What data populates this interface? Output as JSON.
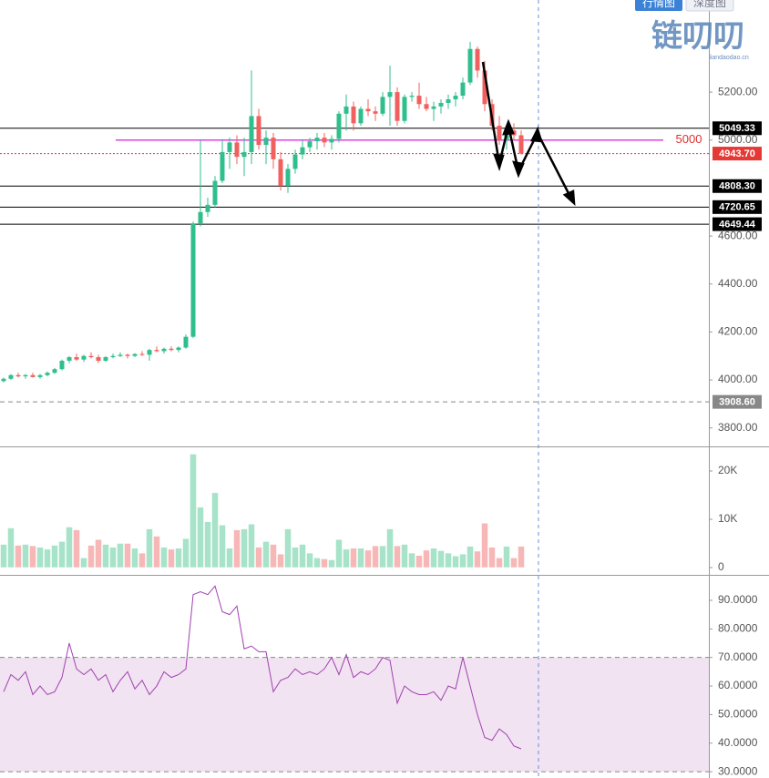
{
  "tabs": [
    "行情图",
    "深度图"
  ],
  "watermark": {
    "title": "链叨叨",
    "url": "liandaodao.cn"
  },
  "chart_data": [
    {
      "type": "candlestick",
      "up_color": "#2fbf8c",
      "down_color": "#f0605e",
      "ylim": [
        3723,
        5584
      ],
      "yticks": [
        {
          "value": 5200,
          "label": "5200.00"
        },
        {
          "value": 5000,
          "label": "5000.00"
        },
        {
          "value": 4600,
          "label": "4600.00"
        },
        {
          "value": 4400,
          "label": "4400.00"
        },
        {
          "value": 4200,
          "label": "4200.00"
        },
        {
          "value": 4000,
          "label": "4000.00"
        },
        {
          "value": 3800,
          "label": "3800.00"
        }
      ],
      "levels": [
        {
          "value": 5049.33,
          "label": "5049.33",
          "color": "#000000"
        },
        {
          "value": 5000,
          "label": "5000",
          "color": "#e040e0",
          "text_color": "#e03030"
        },
        {
          "value": 4943.7,
          "label": "4943.70",
          "color": "#e53935",
          "dash": true
        },
        {
          "value": 4808.3,
          "label": "4808.30",
          "color": "#000000"
        },
        {
          "value": 4720.65,
          "label": "4720.65",
          "color": "#000000"
        },
        {
          "value": 4649.44,
          "label": "4649.44",
          "color": "#000000"
        },
        {
          "value": 3908.6,
          "label": "3908.60",
          "color": "#888888",
          "dash": true
        }
      ],
      "ohlc": [
        [
          3995,
          4010,
          3990,
          4005
        ],
        [
          4005,
          4025,
          4000,
          4020
        ],
        [
          4020,
          4030,
          4010,
          4015
        ],
        [
          4015,
          4025,
          4005,
          4020
        ],
        [
          4020,
          4030,
          4010,
          4012
        ],
        [
          4012,
          4025,
          4005,
          4020
        ],
        [
          4020,
          4035,
          4015,
          4030
        ],
        [
          4030,
          4050,
          4025,
          4045
        ],
        [
          4045,
          4085,
          4040,
          4080
        ],
        [
          4080,
          4100,
          4070,
          4095
        ],
        [
          4095,
          4110,
          4080,
          4085
        ],
        [
          4085,
          4105,
          4075,
          4100
        ],
        [
          4100,
          4115,
          4090,
          4095
        ],
        [
          4095,
          4105,
          4070,
          4080
        ],
        [
          4080,
          4100,
          4075,
          4095
        ],
        [
          4095,
          4110,
          4090,
          4100
        ],
        [
          4100,
          4115,
          4095,
          4105
        ],
        [
          4105,
          4110,
          4090,
          4100
        ],
        [
          4100,
          4112,
          4095,
          4108
        ],
        [
          4108,
          4120,
          4100,
          4105
        ],
        [
          4105,
          4130,
          4080,
          4125
        ],
        [
          4125,
          4140,
          4115,
          4120
        ],
        [
          4120,
          4135,
          4110,
          4130
        ],
        [
          4130,
          4140,
          4120,
          4125
        ],
        [
          4125,
          4140,
          4115,
          4135
        ],
        [
          4135,
          4190,
          4130,
          4180
        ],
        [
          4180,
          4660,
          4175,
          4650
        ],
        [
          4650,
          5000,
          4640,
          4700
        ],
        [
          4700,
          4760,
          4680,
          4730
        ],
        [
          4730,
          4850,
          4720,
          4830
        ],
        [
          4830,
          5000,
          4820,
          4950
        ],
        [
          4950,
          5010,
          4880,
          4990
        ],
        [
          4990,
          5020,
          4900,
          4930
        ],
        [
          4930,
          5010,
          4850,
          4950
        ],
        [
          4950,
          5290,
          4900,
          5100
        ],
        [
          5100,
          5130,
          4960,
          4980
        ],
        [
          4980,
          5040,
          4900,
          5010
        ],
        [
          5010,
          5030,
          4880,
          4920
        ],
        [
          4920,
          4950,
          4790,
          4810
        ],
        [
          4810,
          4900,
          4780,
          4880
        ],
        [
          4880,
          4960,
          4860,
          4940
        ],
        [
          4940,
          5000,
          4920,
          4970
        ],
        [
          4970,
          5010,
          4950,
          4995
        ],
        [
          4995,
          5030,
          4960,
          5010
        ],
        [
          5010,
          5030,
          4970,
          4990
        ],
        [
          4990,
          5020,
          4960,
          5005
        ],
        [
          5005,
          5120,
          4990,
          5110
        ],
        [
          5110,
          5190,
          5040,
          5140
        ],
        [
          5140,
          5160,
          5040,
          5070
        ],
        [
          5070,
          5140,
          5060,
          5130
        ],
        [
          5130,
          5170,
          5100,
          5120
        ],
        [
          5120,
          5140,
          5080,
          5110
        ],
        [
          5110,
          5200,
          5100,
          5180
        ],
        [
          5180,
          5310,
          5060,
          5200
        ],
        [
          5200,
          5220,
          5060,
          5080
        ],
        [
          5080,
          5190,
          5070,
          5180
        ],
        [
          5180,
          5200,
          5160,
          5185
        ],
        [
          5185,
          5240,
          5130,
          5150
        ],
        [
          5150,
          5180,
          5120,
          5130
        ],
        [
          5130,
          5160,
          5080,
          5140
        ],
        [
          5140,
          5170,
          5110,
          5155
        ],
        [
          5155,
          5190,
          5130,
          5170
        ],
        [
          5170,
          5200,
          5140,
          5185
        ],
        [
          5185,
          5260,
          5170,
          5240
        ],
        [
          5240,
          5410,
          5230,
          5380
        ],
        [
          5380,
          5390,
          5260,
          5290
        ],
        [
          5290,
          5330,
          5120,
          5150
        ],
        [
          5150,
          5170,
          5040,
          5060
        ],
        [
          5060,
          5100,
          4980,
          5000
        ],
        [
          5000,
          5060,
          4960,
          5040
        ],
        [
          5040,
          5070,
          5000,
          5020
        ],
        [
          5020,
          5040,
          4940,
          4944
        ]
      ]
    },
    {
      "type": "bar",
      "up_color": "#a6e3c8",
      "down_color": "#f7b7b7",
      "ylim": [
        -1509,
        24906
      ],
      "yticks": [
        {
          "value": 20000,
          "label": "20K"
        },
        {
          "value": 10000,
          "label": "10K"
        },
        0
      ],
      "values": [
        4800,
        8200,
        4600,
        4800,
        4500,
        4200,
        3800,
        4600,
        5400,
        8400,
        7800,
        2000,
        4600,
        5800,
        4800,
        4200,
        5000,
        5000,
        4000,
        3000,
        8000,
        6500,
        4200,
        3800,
        4000,
        6000,
        23500,
        12500,
        9500,
        15500,
        8800,
        4000,
        7800,
        8000,
        9000,
        4200,
        5400,
        4800,
        2800,
        8000,
        4200,
        4800,
        3000,
        2000,
        1800,
        1600,
        5800,
        3800,
        4000,
        4000,
        3600,
        4500,
        4500,
        8000,
        4500,
        4800,
        3000,
        2500,
        3600,
        4000,
        3500,
        3000,
        2400,
        2800,
        4400,
        3400,
        9200,
        4200,
        2000,
        4400,
        2000,
        4400
      ]
    },
    {
      "type": "line",
      "color": "#a040b0",
      "band_color": "#f1e3f1",
      "ylim": [
        27.8,
        98.6
      ],
      "yticks": [
        {
          "value": 90,
          "label": "90.0000"
        },
        {
          "value": 80,
          "label": "80.0000"
        },
        {
          "value": 70,
          "label": "70.0000"
        },
        {
          "value": 60,
          "label": "60.0000"
        },
        {
          "value": 50,
          "label": "50.0000"
        },
        {
          "value": 40,
          "label": "40.0000"
        },
        {
          "value": 30,
          "label": "30.0000"
        }
      ],
      "bands": [
        70,
        30
      ],
      "values": [
        58,
        64,
        62,
        65,
        57,
        60,
        57,
        58,
        63,
        75,
        66,
        64,
        66,
        62,
        64,
        58,
        62,
        65,
        59,
        62,
        57,
        60,
        65,
        63,
        64,
        66,
        92,
        93,
        92,
        95,
        86,
        85,
        88,
        73,
        74,
        72,
        72,
        58,
        62,
        63,
        66,
        64,
        65,
        64,
        66,
        70,
        64,
        71,
        63,
        65,
        64,
        66,
        70,
        69,
        54,
        60,
        58,
        57,
        57,
        58,
        55,
        60,
        59,
        70,
        60,
        50,
        42,
        41,
        45,
        43,
        39,
        38
      ]
    }
  ]
}
